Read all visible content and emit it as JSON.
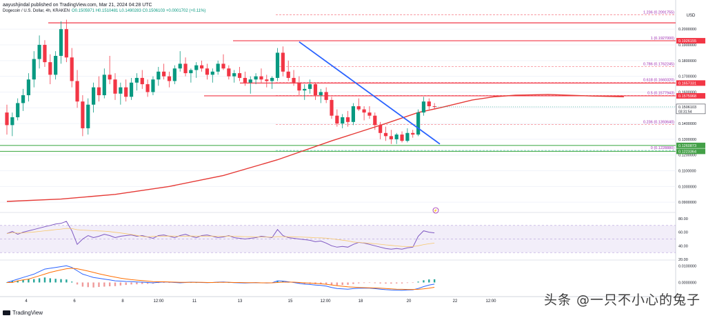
{
  "header": {
    "publisher": "aayushjindal published on TradingView.com, Mar 21, 2024 04:28 UTC",
    "symbol": "Dogecoin / U.S. Dollar, 4h, KRAKEN",
    "open": "O0.1505971",
    "high": "H0.1510481",
    "low": "L0.1490283",
    "close": "C0.1506103",
    "change": "+0.0001702 (+0.11%)"
  },
  "footer": {
    "brand": "TradingView"
  },
  "watermark": "头条 @一只不小心的兔子",
  "colors": {
    "up": "#089981",
    "down": "#f23645",
    "trendline": "#2962ff",
    "ma": "#e53935",
    "fib": "#9c27b0",
    "support": "#4caf50",
    "rsi": "#7e57c2"
  },
  "chart_data": [
    {
      "type": "candlestick",
      "title": "Dogecoin / U.S. Dollar, 4h, KRAKEN",
      "y_axis_currency": "USD",
      "ylim": [
        0.087,
        0.215
      ],
      "y_ticks": [
        "0.2000000",
        "0.1900000",
        "0.1800000",
        "0.1700000",
        "0.1600000",
        "0.1500000",
        "0.1400000",
        "0.1300000",
        "0.1200000",
        "0.1100000",
        "0.1000000",
        "0.0900000"
      ],
      "x_ticks": [
        "4",
        "6",
        "8",
        "12:00",
        "11",
        "13",
        "15",
        "12:00",
        "18",
        "20",
        "22",
        "12:00"
      ],
      "last_price": {
        "value": 0.1506103,
        "label": "0.1506103",
        "countdown": "03:31:54"
      },
      "price_labels": [
        {
          "value": 0.1926155,
          "label": "0.1926155"
        },
        {
          "value": 0.1657331,
          "label": "0.1657331"
        },
        {
          "value": 0.1575968,
          "label": "0.1575968"
        },
        {
          "value": 0.1260873,
          "label": "0.1260873"
        },
        {
          "value": 0.1223364,
          "label": "0.1223364"
        }
      ],
      "fib_levels": [
        {
          "ratio": "1.236",
          "value": 0.2091755,
          "label": "1.236 (0.2091755)"
        },
        {
          "ratio": "1",
          "value": 0.1927,
          "label": "1 (0.1927000)"
        },
        {
          "ratio": "0.786",
          "value": 0.1762245,
          "label": "0.786 (0.1762245)"
        },
        {
          "ratio": "0.618",
          "value": 0.166032,
          "label": "0.618 (0.1660320)"
        },
        {
          "ratio": "0.5",
          "value": 0.1577943,
          "label": "0.5 (0.1577943)"
        },
        {
          "ratio": "0.236",
          "value": 0.139364,
          "label": "0.236 (0.1393640)"
        },
        {
          "ratio": "0",
          "value": 0.122888,
          "label": "0 (0.1228880)"
        }
      ],
      "resistance_lines": [
        0.204,
        0.1926155,
        0.1657331,
        0.1575968
      ],
      "support_lines": [
        0.1260873,
        0.1223364
      ],
      "candles": [
        [
          0.147,
          0.152,
          0.133,
          0.139
        ],
        [
          0.139,
          0.147,
          0.132,
          0.144
        ],
        [
          0.144,
          0.156,
          0.142,
          0.153
        ],
        [
          0.153,
          0.162,
          0.148,
          0.158
        ],
        [
          0.158,
          0.172,
          0.154,
          0.168
        ],
        [
          0.168,
          0.186,
          0.163,
          0.181
        ],
        [
          0.181,
          0.196,
          0.175,
          0.19
        ],
        [
          0.19,
          0.193,
          0.176,
          0.179
        ],
        [
          0.179,
          0.184,
          0.165,
          0.171
        ],
        [
          0.171,
          0.186,
          0.168,
          0.183
        ],
        [
          0.183,
          0.205,
          0.178,
          0.2
        ],
        [
          0.2,
          0.206,
          0.179,
          0.182
        ],
        [
          0.182,
          0.188,
          0.163,
          0.167
        ],
        [
          0.167,
          0.174,
          0.15,
          0.154
        ],
        [
          0.154,
          0.158,
          0.132,
          0.137
        ],
        [
          0.137,
          0.156,
          0.133,
          0.152
        ],
        [
          0.152,
          0.166,
          0.147,
          0.163
        ],
        [
          0.163,
          0.17,
          0.154,
          0.158
        ],
        [
          0.158,
          0.175,
          0.156,
          0.171
        ],
        [
          0.171,
          0.183,
          0.165,
          0.168
        ],
        [
          0.168,
          0.172,
          0.155,
          0.159
        ],
        [
          0.159,
          0.166,
          0.152,
          0.163
        ],
        [
          0.163,
          0.168,
          0.154,
          0.157
        ],
        [
          0.157,
          0.169,
          0.155,
          0.166
        ],
        [
          0.166,
          0.172,
          0.161,
          0.169
        ],
        [
          0.169,
          0.174,
          0.162,
          0.165
        ],
        [
          0.165,
          0.168,
          0.157,
          0.16
        ],
        [
          0.16,
          0.17,
          0.158,
          0.168
        ],
        [
          0.168,
          0.176,
          0.164,
          0.173
        ],
        [
          0.173,
          0.178,
          0.168,
          0.17
        ],
        [
          0.17,
          0.173,
          0.163,
          0.167
        ],
        [
          0.167,
          0.177,
          0.165,
          0.175
        ],
        [
          0.175,
          0.186,
          0.173,
          0.178
        ],
        [
          0.178,
          0.182,
          0.17,
          0.172
        ],
        [
          0.172,
          0.175,
          0.166,
          0.174
        ],
        [
          0.174,
          0.179,
          0.169,
          0.177
        ],
        [
          0.177,
          0.18,
          0.173,
          0.175
        ],
        [
          0.175,
          0.178,
          0.168,
          0.171
        ],
        [
          0.171,
          0.175,
          0.166,
          0.173
        ],
        [
          0.173,
          0.18,
          0.171,
          0.178
        ],
        [
          0.178,
          0.184,
          0.174,
          0.175
        ],
        [
          0.175,
          0.177,
          0.168,
          0.17
        ],
        [
          0.17,
          0.174,
          0.166,
          0.172
        ],
        [
          0.172,
          0.176,
          0.167,
          0.169
        ],
        [
          0.169,
          0.173,
          0.164,
          0.166
        ],
        [
          0.166,
          0.17,
          0.159,
          0.168
        ],
        [
          0.168,
          0.172,
          0.165,
          0.17
        ],
        [
          0.17,
          0.175,
          0.166,
          0.168
        ],
        [
          0.168,
          0.171,
          0.163,
          0.167
        ],
        [
          0.167,
          0.17,
          0.162,
          0.169
        ],
        [
          0.169,
          0.188,
          0.167,
          0.185
        ],
        [
          0.185,
          0.189,
          0.17,
          0.173
        ],
        [
          0.173,
          0.18,
          0.167,
          0.169
        ],
        [
          0.169,
          0.174,
          0.164,
          0.166
        ],
        [
          0.166,
          0.17,
          0.158,
          0.161
        ],
        [
          0.161,
          0.165,
          0.155,
          0.162
        ],
        [
          0.162,
          0.168,
          0.159,
          0.165
        ],
        [
          0.165,
          0.166,
          0.155,
          0.158
        ],
        [
          0.158,
          0.162,
          0.153,
          0.16
        ],
        [
          0.16,
          0.163,
          0.153,
          0.155
        ],
        [
          0.155,
          0.157,
          0.143,
          0.145
        ],
        [
          0.145,
          0.149,
          0.138,
          0.14
        ],
        [
          0.14,
          0.146,
          0.137,
          0.144
        ],
        [
          0.144,
          0.148,
          0.138,
          0.141
        ],
        [
          0.141,
          0.153,
          0.139,
          0.151
        ],
        [
          0.151,
          0.156,
          0.148,
          0.149
        ],
        [
          0.149,
          0.151,
          0.142,
          0.147
        ],
        [
          0.147,
          0.151,
          0.143,
          0.145
        ],
        [
          0.145,
          0.147,
          0.136,
          0.139
        ],
        [
          0.139,
          0.141,
          0.13,
          0.134
        ],
        [
          0.134,
          0.138,
          0.129,
          0.132
        ],
        [
          0.132,
          0.136,
          0.127,
          0.13
        ],
        [
          0.13,
          0.134,
          0.127,
          0.133
        ],
        [
          0.133,
          0.135,
          0.128,
          0.129
        ],
        [
          0.129,
          0.137,
          0.128,
          0.134
        ],
        [
          0.134,
          0.136,
          0.131,
          0.133
        ],
        [
          0.133,
          0.149,
          0.132,
          0.147
        ],
        [
          0.147,
          0.157,
          0.145,
          0.154
        ],
        [
          0.154,
          0.156,
          0.149,
          0.151
        ],
        [
          0.151,
          0.153,
          0.149,
          0.1506103
        ]
      ],
      "ma_path": [
        [
          0,
          0.0905
        ],
        [
          10,
          0.092
        ],
        [
          20,
          0.095
        ],
        [
          30,
          0.1
        ],
        [
          40,
          0.107
        ],
        [
          50,
          0.117
        ],
        [
          60,
          0.129
        ],
        [
          70,
          0.14
        ],
        [
          76,
          0.147
        ],
        [
          80,
          0.15
        ],
        [
          86,
          0.155
        ],
        [
          90,
          0.157
        ],
        [
          94,
          0.158
        ],
        [
          100,
          0.1585
        ],
        [
          108,
          0.1575
        ],
        [
          114,
          0.157
        ]
      ],
      "trendline": [
        [
          54,
          0.1919
        ],
        [
          80,
          0.127
        ]
      ]
    },
    {
      "type": "line",
      "title": "RSI",
      "ylim": [
        20,
        85
      ],
      "y_ticks": [
        "80.00",
        "60.00",
        "40.00",
        "20.00"
      ],
      "band": [
        30,
        70
      ],
      "values": [
        58,
        61,
        57,
        60,
        62,
        64,
        66,
        68,
        70,
        72,
        73,
        76,
        62,
        42,
        50,
        55,
        52,
        54,
        57,
        55,
        52,
        54,
        55,
        56,
        54,
        55,
        53,
        51,
        55,
        56,
        54,
        52,
        55,
        57,
        54,
        52,
        55,
        56,
        54,
        52,
        53,
        55,
        52,
        51,
        50,
        51,
        52,
        54,
        53,
        52,
        64,
        55,
        52,
        51,
        50,
        49,
        48,
        46,
        47,
        44,
        40,
        38,
        39,
        38,
        42,
        45,
        44,
        42,
        40,
        38,
        36,
        35,
        36,
        35,
        37,
        38,
        54,
        62,
        60,
        59
      ]
    },
    {
      "type": "line",
      "title": "MACD",
      "y_ticks": [
        "0.0100000",
        "0.0000000"
      ],
      "macd": [
        0.0,
        0.001,
        0.002,
        0.003,
        0.004,
        0.005,
        0.0065,
        0.008,
        0.0085,
        0.009,
        0.0095,
        0.01,
        0.009,
        0.007,
        0.005,
        0.004,
        0.003,
        0.0025,
        0.002,
        0.0015,
        0.001,
        0.0008,
        0.0006,
        0.0005,
        0.0003,
        0.0002,
        0.0,
        -0.0002,
        0.0001,
        0.0003,
        0.0002,
        0.0,
        -0.0002,
        0.0,
        0.0002,
        0.0001,
        0.0,
        -0.0001,
        0.0,
        0.0002,
        0.0003,
        0.0001,
        -0.0001,
        -0.0002,
        -0.0003,
        -0.0002,
        -0.0001,
        -0.0002,
        -0.0003,
        -0.0002,
        0.001,
        0.0008,
        0.0004,
        0.0,
        -0.0006,
        -0.001,
        -0.0012,
        -0.0016,
        -0.0018,
        -0.0022,
        -0.003,
        -0.0036,
        -0.0038,
        -0.004,
        -0.0037,
        -0.0035,
        -0.0034,
        -0.0034,
        -0.0037,
        -0.004,
        -0.0043,
        -0.0045,
        -0.0046,
        -0.0047,
        -0.0045,
        -0.0044,
        -0.0036,
        -0.0025,
        -0.0016,
        -0.001
      ],
      "signal": [
        0.0,
        0.0,
        0.001,
        0.0015,
        0.002,
        0.003,
        0.004,
        0.005,
        0.006,
        0.0068,
        0.0075,
        0.0082,
        0.0085,
        0.0082,
        0.0075,
        0.0068,
        0.006,
        0.0052,
        0.0045,
        0.0038,
        0.0032,
        0.0026,
        0.0021,
        0.0017,
        0.0014,
        0.0011,
        0.0008,
        0.0005,
        0.0004,
        0.0004,
        0.0003,
        0.0002,
        0.0001,
        0.0001,
        0.0001,
        0.0001,
        0.0001,
        0.0,
        0.0,
        0.0001,
        0.0001,
        0.0001,
        0.0,
        0.0,
        -0.0001,
        -0.0001,
        -0.0001,
        -0.0002,
        -0.0002,
        -0.0002,
        0.0,
        0.0002,
        0.0002,
        0.0002,
        0.0,
        -0.0002,
        -0.0004,
        -0.0006,
        -0.0008,
        -0.0011,
        -0.0015,
        -0.0019,
        -0.0023,
        -0.0026,
        -0.0028,
        -0.003,
        -0.0031,
        -0.0032,
        -0.0033,
        -0.0034,
        -0.0036,
        -0.0038,
        -0.004,
        -0.0041,
        -0.0042,
        -0.0042,
        -0.0041,
        -0.0038,
        -0.0034,
        -0.0029
      ]
    }
  ]
}
